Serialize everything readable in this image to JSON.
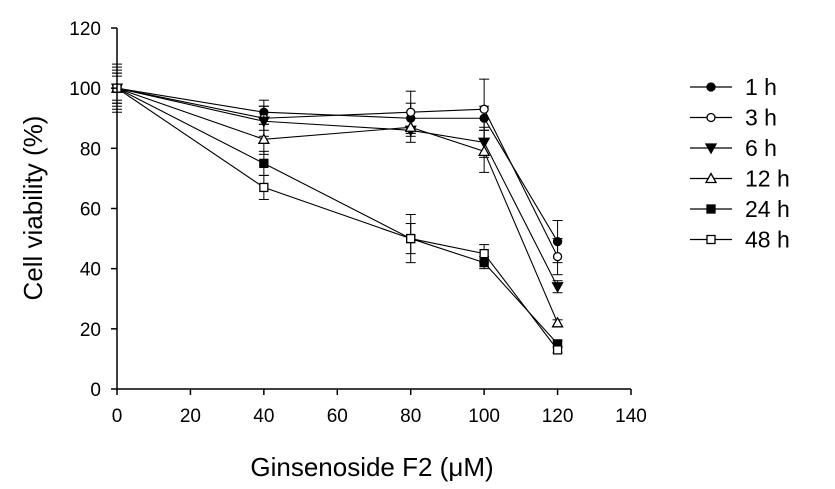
{
  "chart_data": {
    "type": "line",
    "title": "",
    "xlabel": "Ginsenoside F2 (μM)",
    "ylabel": "Cell viability (%)",
    "xlim": [
      0,
      140
    ],
    "ylim": [
      0,
      120
    ],
    "xticks": [
      0,
      20,
      40,
      60,
      80,
      100,
      120,
      140
    ],
    "yticks": [
      0,
      20,
      40,
      60,
      80,
      100,
      120
    ],
    "grid": false,
    "legend_position": "right",
    "x": [
      0,
      40,
      80,
      100,
      120
    ],
    "series": [
      {
        "name": "1 h",
        "marker": "circle-filled",
        "values": [
          100,
          92,
          90,
          90,
          49
        ],
        "errors": [
          6,
          4,
          5,
          4,
          7
        ]
      },
      {
        "name": "3 h",
        "marker": "circle-open",
        "values": [
          100,
          90,
          92,
          93,
          44
        ],
        "errors": [
          5,
          4,
          7,
          10,
          6
        ]
      },
      {
        "name": "6 h",
        "marker": "triangle-down-filled",
        "values": [
          100,
          89,
          86,
          82,
          34
        ],
        "errors": [
          5,
          5,
          4,
          5,
          2
        ]
      },
      {
        "name": "12 h",
        "marker": "triangle-up-open",
        "values": [
          100,
          83,
          87,
          79,
          22
        ],
        "errors": [
          8,
          5,
          3,
          7,
          1
        ]
      },
      {
        "name": "24 h",
        "marker": "square-filled",
        "values": [
          100,
          75,
          50,
          42,
          15
        ],
        "errors": [
          4,
          4,
          5,
          2,
          1
        ]
      },
      {
        "name": "48 h",
        "marker": "square-open",
        "values": [
          100,
          67,
          50,
          45,
          13
        ],
        "errors": [
          7,
          4,
          8,
          3,
          1
        ]
      }
    ]
  }
}
